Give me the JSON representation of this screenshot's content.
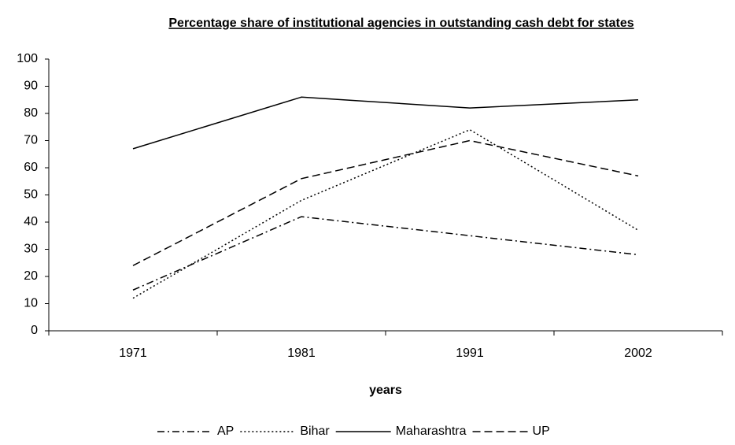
{
  "chart_data": {
    "type": "line",
    "title": "Percentage share of institutional agencies in outstanding cash debt for states",
    "x_label": "years",
    "categories": [
      "1971",
      "1981",
      "1991",
      "2002"
    ],
    "series": [
      {
        "name": "AP",
        "color": "#000000",
        "dash": "dashdot",
        "values": [
          15,
          42,
          35,
          28
        ]
      },
      {
        "name": "Bihar",
        "color": "#000000",
        "dash": "dotted",
        "values": [
          12,
          48,
          74,
          37
        ]
      },
      {
        "name": "Maharashtra",
        "color": "#000000",
        "dash": "solid",
        "values": [
          67,
          86,
          82,
          85
        ]
      },
      {
        "name": "UP",
        "color": "#000000",
        "dash": "dashed",
        "values": [
          24,
          56,
          70,
          57
        ]
      }
    ],
    "ylim": [
      0,
      100
    ],
    "yticks": [
      0,
      10,
      20,
      30,
      40,
      50,
      60,
      70,
      80,
      90,
      100
    ],
    "grid": false,
    "legend": "bottom"
  }
}
